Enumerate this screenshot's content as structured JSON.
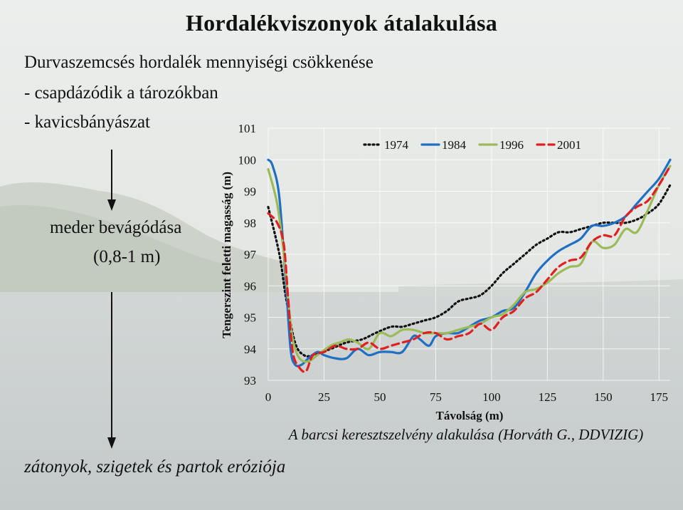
{
  "slide": {
    "title": "Hordalékviszonyok átalakulása",
    "line1": "Durvaszemcsés hordalék mennyiségi csökkenése",
    "line2": "- csapdázódik a tározókban",
    "line3": "- kavicsbányászat",
    "mid1": "meder bevágódása",
    "mid2": "(0,8-1 m)",
    "bottom": "zátonyok, szigetek és partok eróziója",
    "arrow_icon": "down-arrow-icon"
  },
  "chart_data": {
    "type": "line",
    "title": "",
    "caption": "A barcsi keresztszelvény alakulása (Horváth G., DDVIZIG)",
    "xlabel": "Távolság (m)",
    "ylabel": "Tengerszint feletti magasság (m)",
    "xlim": [
      0,
      180
    ],
    "ylim": [
      93,
      101
    ],
    "xticks": [
      "0",
      "25",
      "50",
      "75",
      "100",
      "125",
      "150",
      "175"
    ],
    "yticks": [
      "93",
      "94",
      "95",
      "96",
      "97",
      "98",
      "99",
      "100",
      "101"
    ],
    "grid": true,
    "legend_position": "top",
    "series": [
      {
        "name": "1974",
        "color": "#111111",
        "dash": "dotted",
        "points": [
          [
            0,
            98.5
          ],
          [
            5,
            97.0
          ],
          [
            8,
            95.6
          ],
          [
            12,
            94.2
          ],
          [
            16,
            93.8
          ],
          [
            20,
            93.8
          ],
          [
            28,
            94.0
          ],
          [
            35,
            94.2
          ],
          [
            42,
            94.3
          ],
          [
            48,
            94.5
          ],
          [
            55,
            94.7
          ],
          [
            60,
            94.7
          ],
          [
            65,
            94.8
          ],
          [
            70,
            94.9
          ],
          [
            75,
            95.0
          ],
          [
            80,
            95.2
          ],
          [
            85,
            95.5
          ],
          [
            90,
            95.6
          ],
          [
            95,
            95.7
          ],
          [
            100,
            96.0
          ],
          [
            105,
            96.4
          ],
          [
            110,
            96.7
          ],
          [
            115,
            97.0
          ],
          [
            120,
            97.3
          ],
          [
            125,
            97.5
          ],
          [
            130,
            97.7
          ],
          [
            135,
            97.7
          ],
          [
            140,
            97.8
          ],
          [
            145,
            97.9
          ],
          [
            150,
            98.0
          ],
          [
            155,
            98.0
          ],
          [
            160,
            98.0
          ],
          [
            165,
            98.1
          ],
          [
            170,
            98.3
          ],
          [
            175,
            98.6
          ],
          [
            180,
            99.2
          ]
        ]
      },
      {
        "name": "1984",
        "color": "#1f6fc4",
        "dash": "solid",
        "points": [
          [
            0,
            100.0
          ],
          [
            2,
            99.8
          ],
          [
            5,
            98.8
          ],
          [
            8,
            96.0
          ],
          [
            10,
            94.0
          ],
          [
            12,
            93.5
          ],
          [
            15,
            93.5
          ],
          [
            18,
            93.7
          ],
          [
            22,
            93.9
          ],
          [
            25,
            93.8
          ],
          [
            30,
            93.7
          ],
          [
            35,
            93.7
          ],
          [
            40,
            94.0
          ],
          [
            45,
            93.8
          ],
          [
            50,
            93.9
          ],
          [
            55,
            93.9
          ],
          [
            60,
            93.9
          ],
          [
            65,
            94.4
          ],
          [
            68,
            94.3
          ],
          [
            72,
            94.1
          ],
          [
            75,
            94.4
          ],
          [
            80,
            94.5
          ],
          [
            85,
            94.5
          ],
          [
            90,
            94.7
          ],
          [
            95,
            94.9
          ],
          [
            100,
            95.0
          ],
          [
            105,
            95.2
          ],
          [
            110,
            95.3
          ],
          [
            115,
            95.8
          ],
          [
            120,
            96.4
          ],
          [
            125,
            96.8
          ],
          [
            130,
            97.1
          ],
          [
            135,
            97.3
          ],
          [
            140,
            97.5
          ],
          [
            145,
            97.9
          ],
          [
            150,
            97.9
          ],
          [
            155,
            98.0
          ],
          [
            160,
            98.2
          ],
          [
            165,
            98.6
          ],
          [
            170,
            99.0
          ],
          [
            175,
            99.4
          ],
          [
            180,
            100.0
          ]
        ]
      },
      {
        "name": "1996",
        "color": "#9bbb59",
        "dash": "solid",
        "points": [
          [
            0,
            99.7
          ],
          [
            4,
            98.6
          ],
          [
            7,
            97.0
          ],
          [
            9,
            95.5
          ],
          [
            11,
            94.3
          ],
          [
            14,
            93.7
          ],
          [
            18,
            93.6
          ],
          [
            22,
            93.8
          ],
          [
            28,
            94.1
          ],
          [
            32,
            94.2
          ],
          [
            36,
            94.3
          ],
          [
            40,
            94.2
          ],
          [
            45,
            94.0
          ],
          [
            50,
            94.5
          ],
          [
            55,
            94.4
          ],
          [
            60,
            94.6
          ],
          [
            65,
            94.6
          ],
          [
            70,
            94.5
          ],
          [
            75,
            94.5
          ],
          [
            80,
            94.5
          ],
          [
            85,
            94.6
          ],
          [
            90,
            94.7
          ],
          [
            95,
            94.8
          ],
          [
            100,
            95.0
          ],
          [
            105,
            95.1
          ],
          [
            110,
            95.4
          ],
          [
            115,
            95.8
          ],
          [
            120,
            95.9
          ],
          [
            125,
            96.1
          ],
          [
            130,
            96.4
          ],
          [
            135,
            96.6
          ],
          [
            140,
            96.7
          ],
          [
            145,
            97.4
          ],
          [
            150,
            97.2
          ],
          [
            155,
            97.3
          ],
          [
            160,
            97.8
          ],
          [
            165,
            97.7
          ],
          [
            170,
            98.4
          ],
          [
            175,
            99.2
          ],
          [
            180,
            99.8
          ]
        ]
      },
      {
        "name": "2001",
        "color": "#e02020",
        "dash": "dashed",
        "points": [
          [
            0,
            98.3
          ],
          [
            4,
            98.0
          ],
          [
            7,
            97.3
          ],
          [
            9,
            95.5
          ],
          [
            11,
            93.9
          ],
          [
            14,
            93.4
          ],
          [
            17,
            93.3
          ],
          [
            20,
            93.8
          ],
          [
            25,
            93.9
          ],
          [
            30,
            94.1
          ],
          [
            35,
            94.0
          ],
          [
            40,
            94.0
          ],
          [
            45,
            94.2
          ],
          [
            50,
            94.0
          ],
          [
            55,
            94.1
          ],
          [
            60,
            94.2
          ],
          [
            65,
            94.3
          ],
          [
            70,
            94.5
          ],
          [
            75,
            94.5
          ],
          [
            80,
            94.3
          ],
          [
            85,
            94.4
          ],
          [
            90,
            94.5
          ],
          [
            95,
            94.8
          ],
          [
            100,
            94.6
          ],
          [
            105,
            95.0
          ],
          [
            110,
            95.2
          ],
          [
            115,
            95.6
          ],
          [
            120,
            95.8
          ],
          [
            125,
            96.2
          ],
          [
            130,
            96.6
          ],
          [
            135,
            96.8
          ],
          [
            140,
            96.9
          ],
          [
            145,
            97.4
          ],
          [
            150,
            97.6
          ],
          [
            155,
            97.6
          ],
          [
            160,
            98.2
          ],
          [
            165,
            98.5
          ],
          [
            170,
            98.7
          ],
          [
            175,
            99.2
          ],
          [
            180,
            99.8
          ]
        ]
      }
    ]
  }
}
